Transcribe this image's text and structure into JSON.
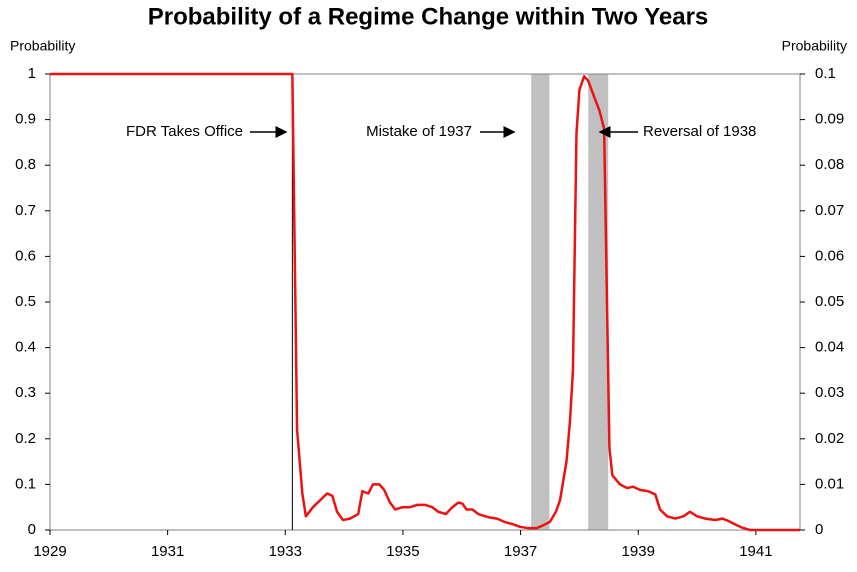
{
  "chart_data": {
    "type": "line",
    "title": "Probability of a Regime Change within Two Years",
    "y_label": "Probability",
    "y2_label": "Probability",
    "xlim": [
      1929,
      1941.75
    ],
    "xticks": [
      1929,
      1931,
      1933,
      1935,
      1937,
      1939,
      1941
    ],
    "ylim": [
      0,
      1
    ],
    "yticks": [
      0,
      0.1,
      0.2,
      0.3,
      0.4,
      0.5,
      0.6,
      0.7,
      0.8,
      0.9,
      1
    ],
    "y2lim": [
      0,
      0.1
    ],
    "y2ticks": [
      0,
      0.01,
      0.02,
      0.03,
      0.04,
      0.05,
      0.06,
      0.07,
      0.08,
      0.09,
      0.1
    ],
    "grid": false,
    "shaded": [
      [
        1937.18,
        1937.49
      ],
      [
        1938.15,
        1938.49
      ]
    ],
    "shade_color": "#c0c0c0",
    "vline": 1933.12,
    "annotations": [
      "FDR Takes Office",
      "Mistake of 1937",
      "Reversal of 1938"
    ],
    "series": [
      {
        "name": "Probability",
        "color": "#ee1111",
        "x": [
          1929,
          1933.12,
          1933.2,
          1933.29,
          1933.35,
          1933.47,
          1933.59,
          1933.71,
          1933.8,
          1933.88,
          1933.98,
          1934.1,
          1934.24,
          1934.31,
          1934.41,
          1934.49,
          1934.6,
          1934.68,
          1934.78,
          1934.87,
          1934.99,
          1935.12,
          1935.24,
          1935.38,
          1935.5,
          1935.6,
          1935.73,
          1935.84,
          1935.94,
          1936.01,
          1936.08,
          1936.18,
          1936.28,
          1936.45,
          1936.6,
          1936.72,
          1936.86,
          1936.99,
          1937.13,
          1937.27,
          1937.38,
          1937.5,
          1937.6,
          1937.67,
          1937.78,
          1937.84,
          1937.89,
          1937.95,
          1938.0,
          1938.08,
          1938.15,
          1938.25,
          1938.34,
          1938.42,
          1938.51,
          1938.56,
          1938.69,
          1938.81,
          1938.91,
          1939.03,
          1939.17,
          1939.29,
          1939.37,
          1939.49,
          1939.63,
          1939.77,
          1939.88,
          1940.0,
          1940.14,
          1940.31,
          1940.43,
          1940.53,
          1940.65,
          1940.77,
          1940.9,
          1941.75
        ],
        "values": [
          1,
          1,
          0.22,
          0.08,
          0.03,
          0.05,
          0.065,
          0.08,
          0.075,
          0.04,
          0.022,
          0.025,
          0.035,
          0.085,
          0.08,
          0.1,
          0.1,
          0.088,
          0.06,
          0.045,
          0.05,
          0.05,
          0.055,
          0.055,
          0.05,
          0.04,
          0.035,
          0.05,
          0.06,
          0.058,
          0.045,
          0.045,
          0.035,
          0.028,
          0.025,
          0.018,
          0.013,
          0.007,
          0.004,
          0.004,
          0.01,
          0.018,
          0.04,
          0.065,
          0.15,
          0.24,
          0.35,
          0.87,
          0.965,
          0.995,
          0.985,
          0.95,
          0.92,
          0.88,
          0.18,
          0.12,
          0.1,
          0.092,
          0.095,
          0.088,
          0.085,
          0.078,
          0.045,
          0.03,
          0.025,
          0.03,
          0.04,
          0.03,
          0.025,
          0.022,
          0.025,
          0.02,
          0.012,
          0.005,
          0,
          0
        ]
      }
    ]
  }
}
